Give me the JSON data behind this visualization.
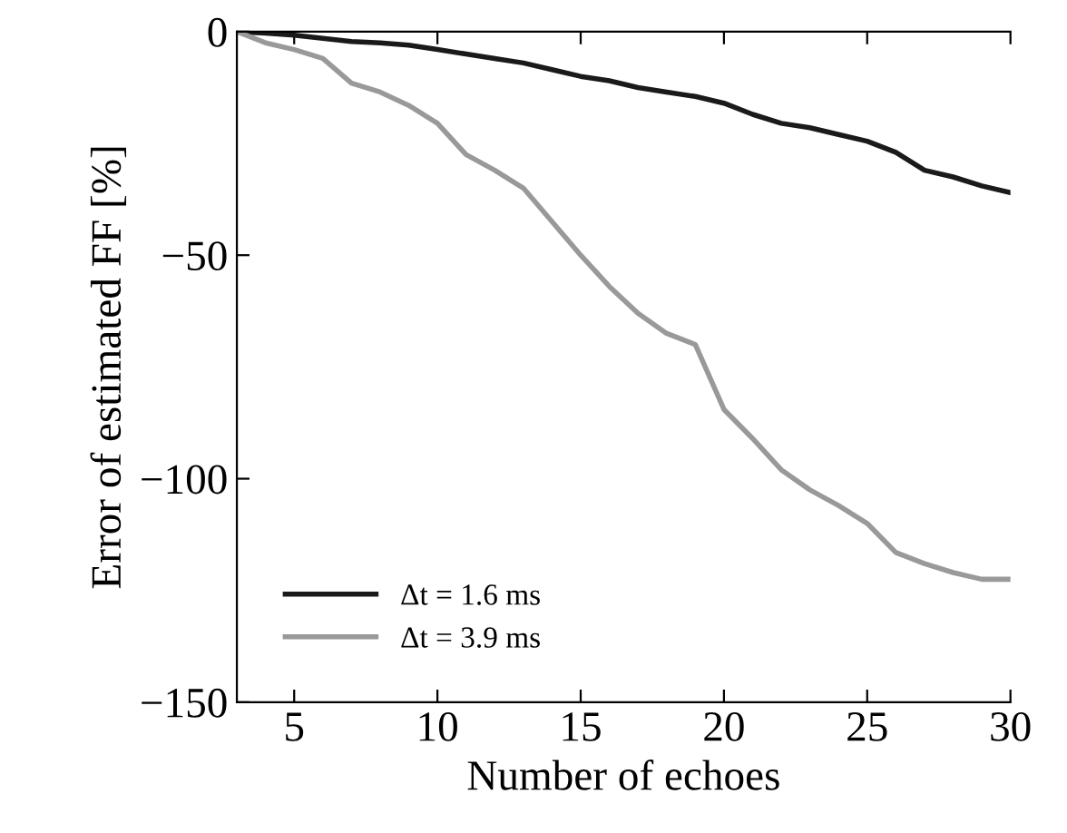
{
  "chart_data": {
    "type": "line",
    "xlabel": "Number of echoes",
    "ylabel": "Error of estimated FF [%]",
    "x": [
      3,
      4,
      5,
      6,
      7,
      8,
      9,
      10,
      11,
      12,
      13,
      14,
      15,
      16,
      17,
      18,
      19,
      20,
      21,
      22,
      23,
      24,
      25,
      26,
      27,
      28,
      29,
      30
    ],
    "series": [
      {
        "name": "Δt = 1.6 ms",
        "color": "#1a1a1a",
        "values": [
          0,
          -0.3,
          -0.8,
          -1.5,
          -2.2,
          -2.5,
          -3,
          -4,
          -5,
          -6,
          -7,
          -8.5,
          -10,
          -11,
          -12.5,
          -13.5,
          -14.5,
          -16,
          -18.5,
          -20.5,
          -21.5,
          -23,
          -24.5,
          -27,
          -31,
          -32.5,
          -34.5,
          -36
        ]
      },
      {
        "name": "Δt = 3.9 ms",
        "color": "#999999",
        "values": [
          0,
          -2.5,
          -4,
          -6,
          -11.5,
          -13.5,
          -16.5,
          -20.5,
          -27.5,
          -31,
          -35,
          -42.5,
          -50,
          -57,
          -63,
          -67.5,
          -70,
          -84.5,
          -91,
          -98,
          -102.5,
          -106,
          -110,
          -116.5,
          -119,
          -121,
          -122.5,
          -122.5
        ]
      }
    ],
    "xlim": [
      3,
      30
    ],
    "xticks": [
      5,
      10,
      15,
      20,
      25,
      30
    ],
    "ylim": [
      -150,
      0
    ],
    "yticks": [
      {
        "value": -150,
        "label": "−150"
      },
      {
        "value": -100,
        "label": "−100"
      },
      {
        "value": -50,
        "label": "−50"
      },
      0
    ],
    "legend": "bottom left",
    "grid": false,
    "marker": "none",
    "line_style": "solid"
  }
}
